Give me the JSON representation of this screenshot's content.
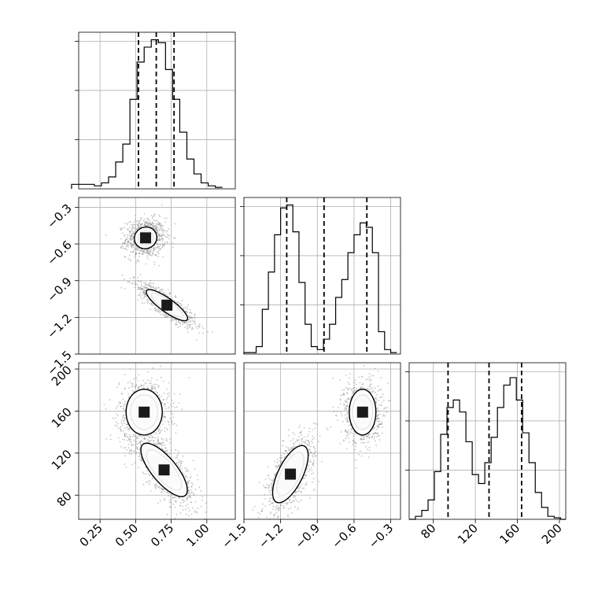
{
  "chart_data": {
    "type": "corner",
    "params": [
      {
        "range": [
          0.1,
          1.2
        ],
        "ticks": [
          0.25,
          0.5,
          0.75,
          1.0
        ],
        "tick_labels": [
          "0.25",
          "0.50",
          "0.75",
          "1.00"
        ],
        "quantiles": [
          0.52,
          0.645,
          0.77
        ],
        "hist_bins": [
          0.05,
          0.21,
          0.26,
          0.31,
          0.36,
          0.41,
          0.46,
          0.51,
          0.56,
          0.61,
          0.66,
          0.71,
          0.76,
          0.81,
          0.86,
          0.91,
          0.96,
          1.01,
          1.06,
          1.11
        ],
        "hist_counts": [
          0.03,
          0.02,
          0.04,
          0.08,
          0.18,
          0.3,
          0.6,
          0.85,
          0.95,
          1.0,
          0.98,
          0.8,
          0.6,
          0.38,
          0.2,
          0.1,
          0.04,
          0.02,
          0.01
        ]
      },
      {
        "range": [
          -1.5,
          -0.22
        ],
        "ticks": [
          -1.5,
          -1.2,
          -0.9,
          -0.6,
          -0.3
        ],
        "tick_labels": [
          "−1.5",
          "−1.2",
          "−0.9",
          "−0.6",
          "−0.3"
        ],
        "quantiles": [
          -1.15,
          -0.845,
          -0.495
        ],
        "hist_bins": [
          -1.5,
          -1.45,
          -1.4,
          -1.35,
          -1.3,
          -1.25,
          -1.2,
          -1.15,
          -1.1,
          -1.05,
          -1.0,
          -0.95,
          -0.9,
          -0.85,
          -0.8,
          -0.75,
          -0.7,
          -0.65,
          -0.6,
          -0.55,
          -0.5,
          -0.45,
          -0.4,
          -0.35,
          -0.3,
          -0.25
        ],
        "hist_counts": [
          0.01,
          0.01,
          0.05,
          0.3,
          0.55,
          0.8,
          0.98,
          1.0,
          0.82,
          0.48,
          0.2,
          0.05,
          0.03,
          0.1,
          0.2,
          0.38,
          0.5,
          0.68,
          0.8,
          0.88,
          0.85,
          0.68,
          0.15,
          0.03,
          0.01
        ]
      },
      {
        "range": [
          57,
          206
        ],
        "ticks": [
          80,
          120,
          160,
          200
        ],
        "tick_labels": [
          "80",
          "120",
          "160",
          "200"
        ],
        "quantiles": [
          94,
          133,
          164
        ],
        "hist_bins": [
          57,
          63,
          69,
          75,
          81,
          87,
          93,
          99,
          105,
          111,
          117,
          123,
          129,
          135,
          141,
          147,
          153,
          159,
          165,
          171,
          177,
          183,
          189,
          195,
          201,
          206
        ],
        "hist_counts": [
          0.0,
          0.02,
          0.06,
          0.13,
          0.32,
          0.57,
          0.75,
          0.8,
          0.72,
          0.52,
          0.3,
          0.24,
          0.38,
          0.55,
          0.75,
          0.9,
          0.95,
          0.8,
          0.58,
          0.38,
          0.18,
          0.08,
          0.02,
          0.01,
          0.0
        ]
      }
    ],
    "y_top_ticks": [
      0.33,
      0.66,
      0.99
    ],
    "hist_max": 1.0,
    "pairs": [
      {
        "i": 0,
        "j": 1,
        "modes": [
          {
            "cx": 0.57,
            "cy": -0.55,
            "sx": 0.055,
            "sy": 0.062,
            "rho": 0.05,
            "levels": [
              0.95,
              1.7,
              2.6
            ]
          },
          {
            "cx": 0.72,
            "cy": -1.1,
            "sx": 0.08,
            "sy": 0.07,
            "rho": -0.85,
            "levels": [
              0.9,
              1.6,
              2.5,
              3.3
            ]
          }
        ]
      },
      {
        "i": 0,
        "j": 2,
        "modes": [
          {
            "cx": 0.56,
            "cy": 159,
            "sx": 0.07,
            "sy": 12,
            "rho": 0.0,
            "levels": [
              0.9,
              1.6,
              2.5,
              3.3
            ]
          },
          {
            "cx": 0.7,
            "cy": 104,
            "sx": 0.09,
            "sy": 14,
            "rho": -0.75,
            "levels": [
              0.9,
              1.6,
              2.5,
              3.3
            ]
          }
        ]
      },
      {
        "i": 1,
        "j": 2,
        "modes": [
          {
            "cx": -1.12,
            "cy": 100,
            "sx": 0.08,
            "sy": 15,
            "rho": 0.65,
            "levels": [
              0.9,
              1.6,
              2.5,
              3.3
            ]
          },
          {
            "cx": -0.53,
            "cy": 159,
            "sx": 0.06,
            "sy": 12,
            "rho": 0.0,
            "levels": [
              0.9,
              1.6,
              2.5,
              3.3
            ]
          }
        ]
      }
    ],
    "colors": {
      "axis": "#000000",
      "grid": "#b0b0b0",
      "scatter": "#808080",
      "density_dark": "#1a1a1a"
    },
    "grid": true
  }
}
